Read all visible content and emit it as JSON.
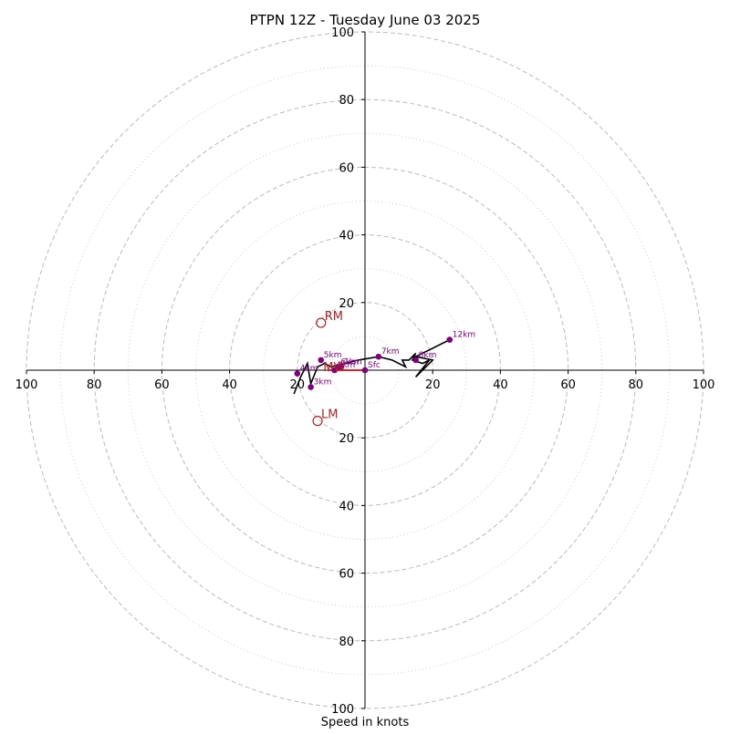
{
  "chart_data": {
    "type": "scatter",
    "title": "PTPN 12Z - Tuesday June 03 2025",
    "xlabel": "Speed in knots",
    "ylabel": "",
    "xlim": [
      -100,
      100
    ],
    "ylim": [
      -100,
      100
    ],
    "rings": [
      20,
      40,
      60,
      80,
      100
    ],
    "minor_rings": [
      10,
      30,
      50,
      70,
      90
    ],
    "x_tick_labels": [
      "100",
      "80",
      "60",
      "40",
      "20",
      "20",
      "40",
      "60",
      "80",
      "100"
    ],
    "y_tick_labels": [
      "100",
      "80",
      "60",
      "40",
      "20",
      "20",
      "40",
      "60",
      "80",
      "100"
    ],
    "hodograph_trace": [
      [
        -21,
        -7
      ],
      [
        -19,
        -2
      ],
      [
        -17,
        2
      ],
      [
        -16,
        -4
      ],
      [
        -14,
        1
      ],
      [
        -12,
        2
      ],
      [
        -10,
        1
      ],
      [
        -6,
        2
      ],
      [
        -2,
        3
      ],
      [
        4,
        4
      ],
      [
        8,
        3
      ],
      [
        12,
        1
      ],
      [
        11,
        3
      ],
      [
        13,
        3
      ],
      [
        15,
        5
      ],
      [
        14,
        3
      ],
      [
        17,
        2
      ],
      [
        19,
        3
      ],
      [
        15,
        -2
      ],
      [
        20,
        3
      ],
      [
        15,
        4
      ],
      [
        25,
        9
      ]
    ],
    "height_points": [
      {
        "label": "Sfc",
        "x": 0,
        "y": 0
      },
      {
        "label": "1km",
        "x": -7,
        "y": 1
      },
      {
        "label": "2km",
        "x": -9,
        "y": 0
      },
      {
        "label": "3km",
        "x": -16,
        "y": -5
      },
      {
        "label": "4km",
        "x": -20,
        "y": -1
      },
      {
        "label": "5km",
        "x": -13,
        "y": 3
      },
      {
        "label": "6km",
        "x": -8,
        "y": 1
      },
      {
        "label": "7km",
        "x": 4,
        "y": 4
      },
      {
        "label": "8km",
        "x": 15,
        "y": 3
      },
      {
        "label": "12km",
        "x": 25,
        "y": 9
      }
    ],
    "storm_motions": [
      {
        "label": "RM",
        "x": -13,
        "y": 14
      },
      {
        "label": "LM",
        "x": -14,
        "y": -15
      },
      {
        "label": "MW",
        "x": -11,
        "y": 0
      }
    ],
    "mean_vector": [
      [
        0,
        0
      ],
      [
        -11,
        0
      ]
    ]
  },
  "colors": {
    "trace": "#000000",
    "height_points": "#800080",
    "storm_motion": "#b22222",
    "mean_vector": "#e00000",
    "rings": "#bbbbbb",
    "minor_rings": "#cccccc"
  }
}
